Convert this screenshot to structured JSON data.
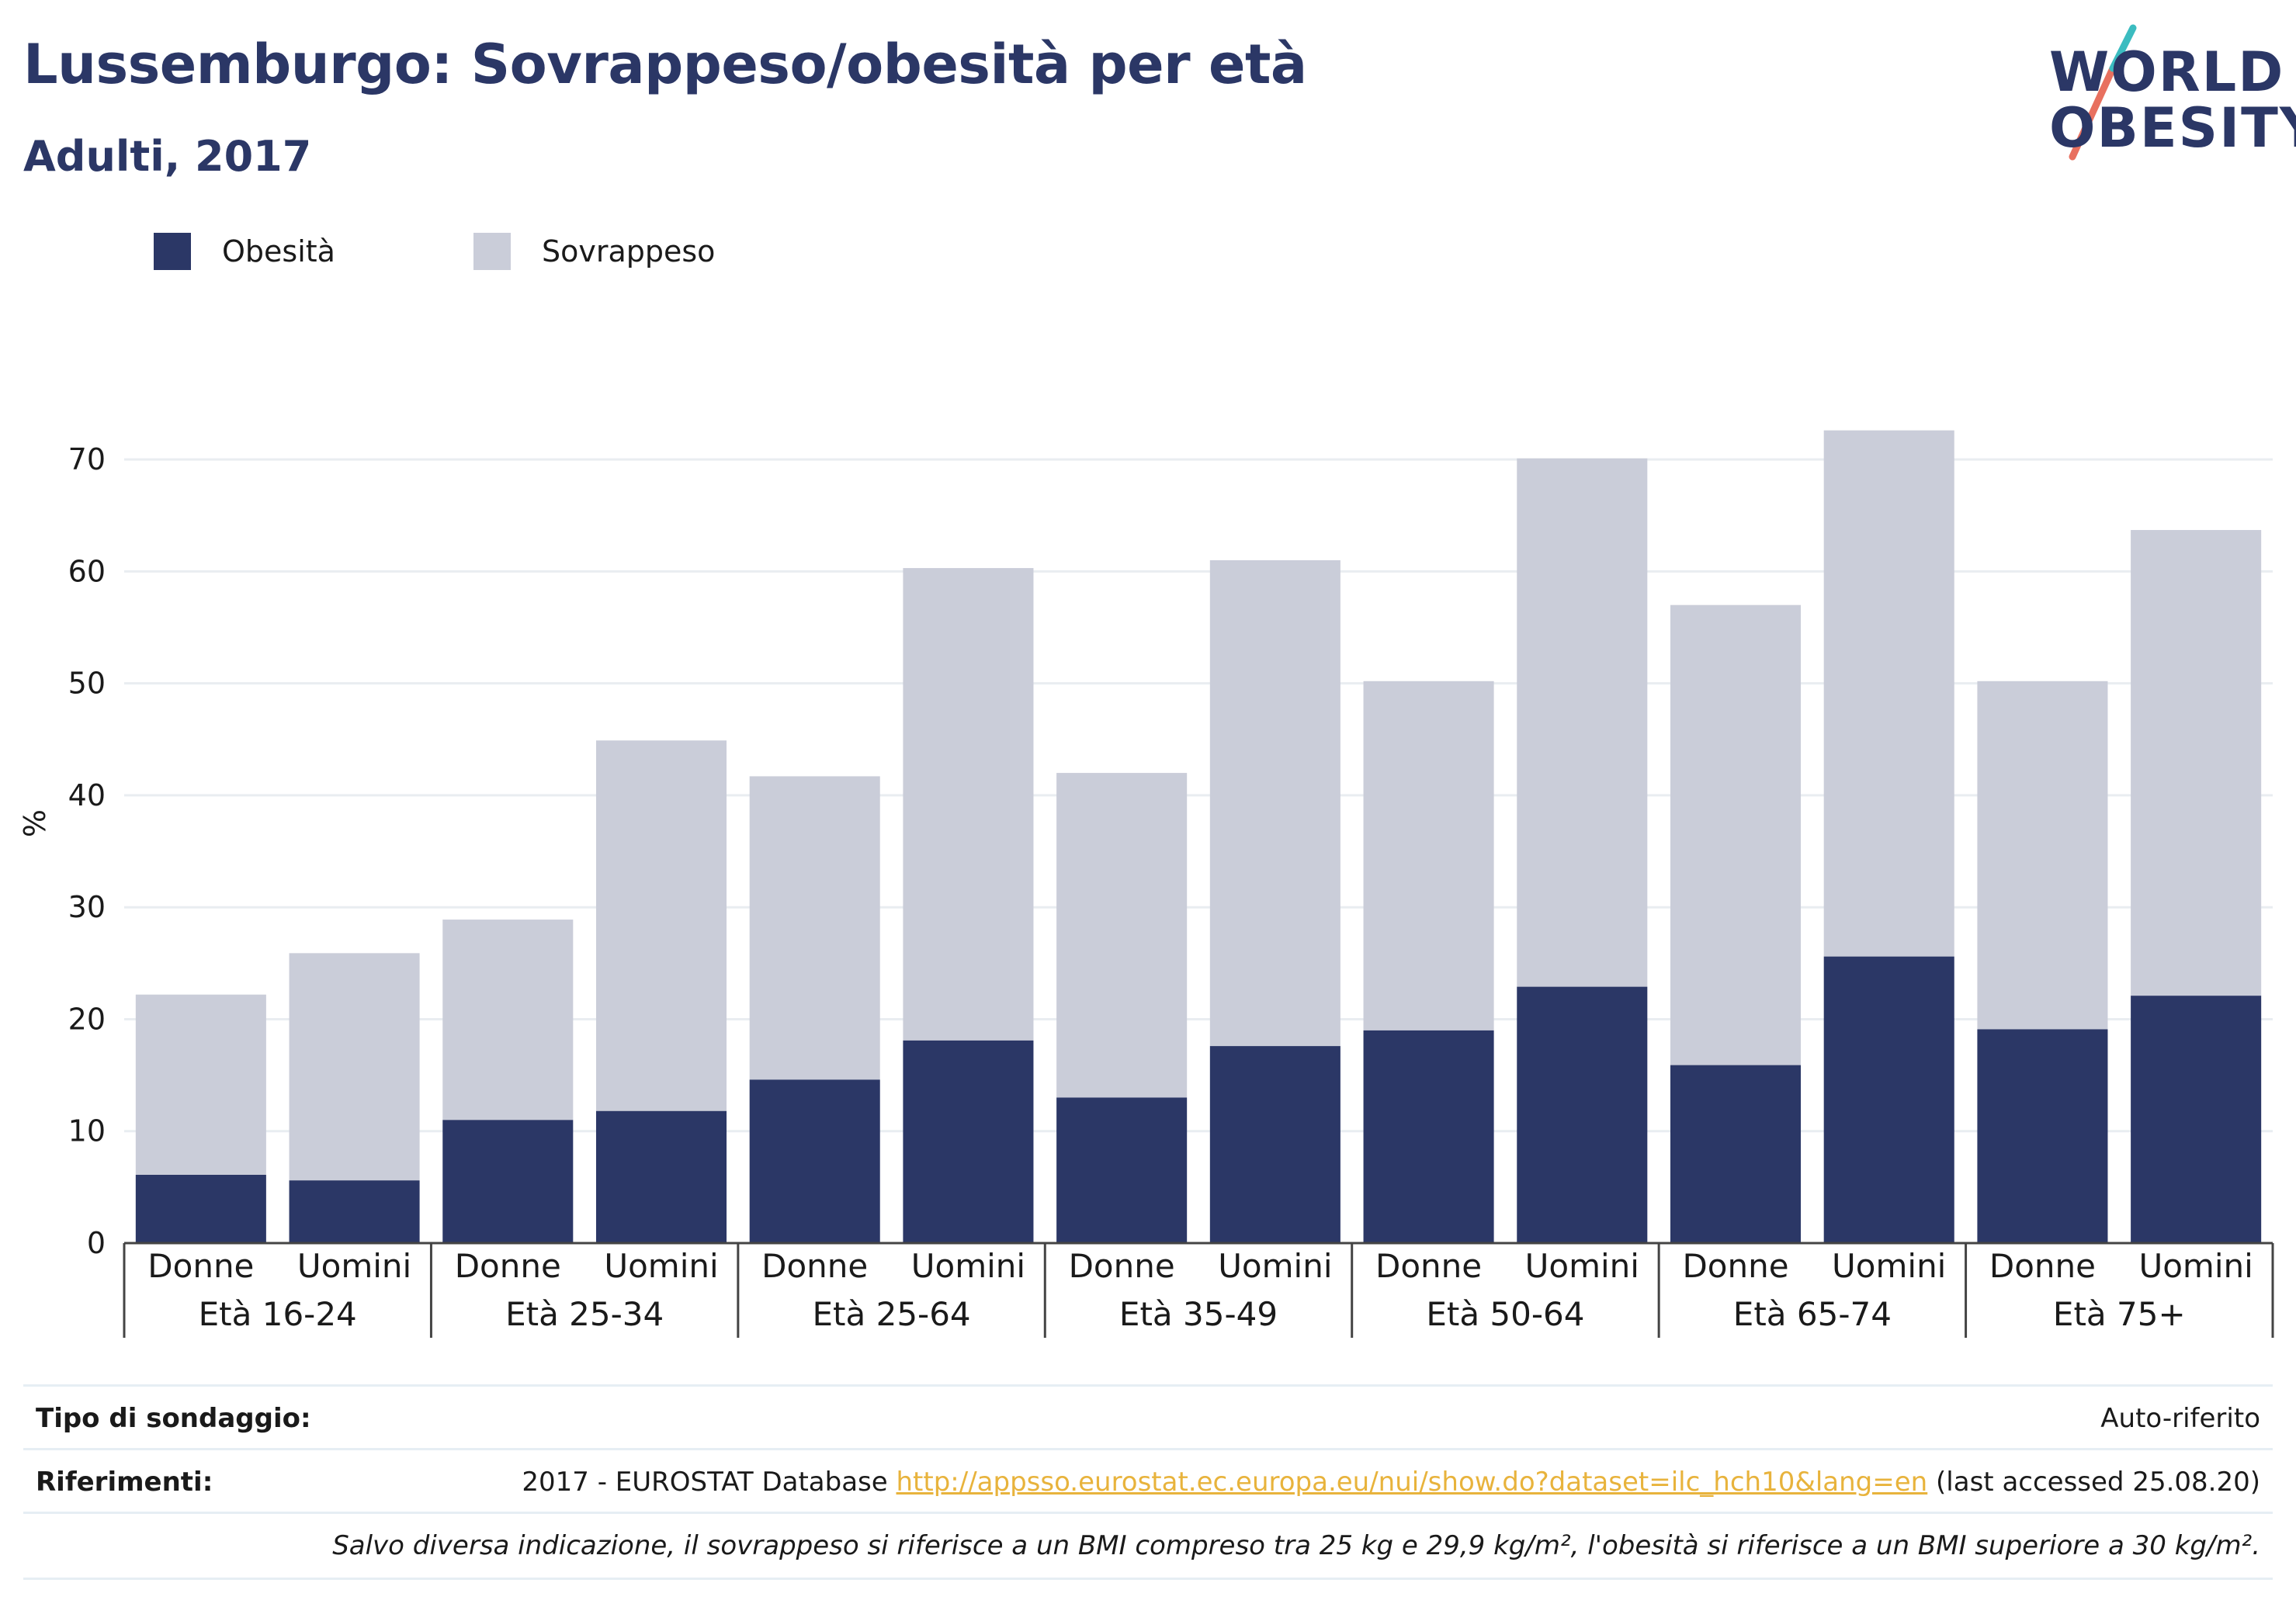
{
  "title": "Lussemburgo: Sovrappeso/obesità per età",
  "subtitle": "Adulti, 2017",
  "logo": {
    "line1": "WORLD",
    "line2": "OBESITY"
  },
  "legend": [
    {
      "label": "Obesità",
      "color": "#2b3766"
    },
    {
      "label": "Sovrappeso",
      "color": "#cacdd9"
    }
  ],
  "chart_data": {
    "type": "bar",
    "stacked": true,
    "ylabel": "%",
    "ylim": [
      0,
      75
    ],
    "yticks": [
      0,
      10,
      20,
      30,
      40,
      50,
      60,
      70
    ],
    "grid": true,
    "legend_position": "top-left",
    "groups": [
      "Età 16-24",
      "Età 25-34",
      "Età 25-64",
      "Età 35-49",
      "Età 50-64",
      "Età 65-74",
      "Età 75+"
    ],
    "subcategories": [
      "Donne",
      "Uomini"
    ],
    "series": [
      {
        "name": "Obesità",
        "color": "#2b3766",
        "values": [
          6.1,
          5.6,
          11,
          11.8,
          14.6,
          18.1,
          13,
          17.6,
          19,
          22.9,
          15.9,
          25.6,
          19.1,
          22.1
        ]
      },
      {
        "name": "Sovrappeso",
        "color": "#cacdd9",
        "values": [
          16.1,
          20.3,
          17.9,
          33.1,
          27.1,
          42.2,
          29,
          43.4,
          31.2,
          47.2,
          41.1,
          47,
          31.1,
          41.6
        ]
      }
    ]
  },
  "footer": {
    "survey_label": "Tipo di sondaggio:",
    "survey_value": "Auto-riferito",
    "ref_label": "Riferimenti:",
    "ref_prefix": "2017 - EUROSTAT Database ",
    "ref_link": "http://appsso.eurostat.ec.europa.eu/nui/show.do?dataset=ilc_hch10&lang=en",
    "ref_suffix": " (last accessed 25.08.20)",
    "note": "Salvo diversa indicazione, il sovrappeso si riferisce a un BMI compreso tra 25 kg e 29,9 kg/m², l'obesità si riferisce a un BMI superiore a 30 kg/m²."
  }
}
